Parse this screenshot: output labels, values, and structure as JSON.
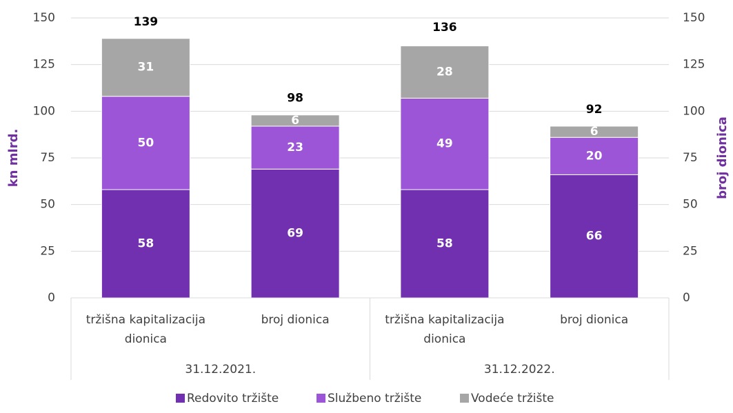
{
  "chart_data": {
    "type": "stacked_bar",
    "categories": [
      "tržišna kapitalizacija dionica",
      "broj dionica",
      "tržišna kapitalizacija dionica",
      "broj dionica"
    ],
    "groups": [
      "31.12.2021.",
      "31.12.2022."
    ],
    "series": [
      {
        "name": "Redovito tržište",
        "color": "#7030b0",
        "values": [
          58,
          69,
          58,
          66
        ]
      },
      {
        "name": "Službeno tržište",
        "color": "#9b55d6",
        "values": [
          50,
          23,
          49,
          20
        ]
      },
      {
        "name": "Vodeće tržište",
        "color": "#a6a6a6",
        "values": [
          31,
          6,
          28,
          6
        ]
      }
    ],
    "totals": [
      139,
      98,
      136,
      92
    ],
    "ylabel": "kn mlrd.",
    "y2label": "broj dionica",
    "ylim": [
      0,
      150
    ],
    "yticks": [
      0,
      25,
      50,
      75,
      100,
      125,
      150
    ],
    "y2lim": [
      0,
      150
    ],
    "y2ticks": [
      0,
      25,
      50,
      75,
      100,
      125,
      150
    ],
    "grid": true,
    "legend": "bottom"
  }
}
